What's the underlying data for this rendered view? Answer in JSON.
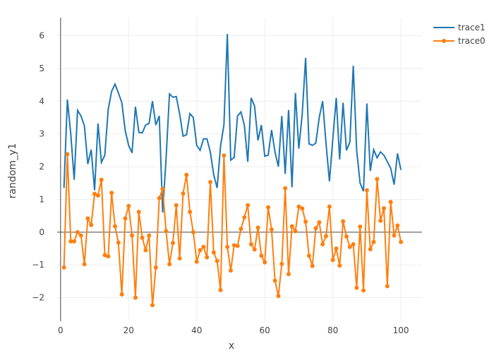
{
  "chart_data": {
    "type": "line",
    "title": "",
    "xlabel": "x",
    "ylabel": "random_y1",
    "xlim": [
      -1,
      106.2
    ],
    "ylim": [
      -2.72,
      6.55
    ],
    "grid": true,
    "legend_position": "top-right",
    "x_ticks": [
      0,
      20,
      40,
      60,
      80,
      100
    ],
    "y_ticks": [
      -2,
      -1,
      0,
      1,
      2,
      3,
      4,
      5,
      6
    ],
    "x_tick_labels": [
      "0",
      "20",
      "40",
      "60",
      "80",
      "100"
    ],
    "y_tick_labels": [
      "−2",
      "−1",
      "0",
      "1",
      "2",
      "3",
      "4",
      "5",
      "6"
    ],
    "series": [
      {
        "name": "trace1",
        "mode": "lines",
        "color": "#1f77b4",
        "values": [
          1.35,
          4.05,
          3.0,
          1.6,
          3.72,
          3.55,
          3.25,
          2.08,
          2.52,
          1.28,
          3.32,
          2.13,
          2.35,
          3.75,
          4.3,
          4.52,
          4.25,
          3.95,
          3.1,
          2.65,
          2.42,
          3.83,
          3.05,
          3.03,
          3.27,
          3.32,
          4.0,
          3.27,
          3.55,
          0.6,
          2.25,
          4.22,
          4.12,
          4.14,
          3.6,
          2.93,
          2.97,
          3.62,
          3.5,
          2.65,
          2.5,
          2.85,
          2.85,
          2.45,
          1.75,
          1.35,
          2.62,
          3.28,
          6.05,
          2.2,
          2.28,
          3.55,
          3.67,
          3.27,
          2.15,
          4.1,
          3.85,
          2.8,
          3.27,
          2.32,
          2.35,
          3.12,
          2.45,
          2.0,
          3.55,
          1.78,
          3.73,
          1.37,
          4.25,
          2.55,
          3.6,
          5.32,
          2.7,
          2.65,
          2.72,
          3.5,
          4.0,
          2.7,
          1.55,
          2.85,
          4.1,
          2.22,
          3.95,
          2.5,
          2.75,
          5.08,
          2.5,
          1.5,
          1.25,
          3.93,
          1.87,
          2.52,
          2.27,
          2.45,
          2.35,
          2.15,
          1.95,
          1.45,
          2.4,
          1.9
        ]
      },
      {
        "name": "trace0",
        "mode": "lines+markers",
        "color": "#ff7f0e",
        "values": [
          -1.08,
          2.38,
          -0.28,
          -0.28,
          0.0,
          -0.1,
          -0.98,
          0.42,
          0.22,
          1.17,
          1.12,
          1.6,
          -0.7,
          -0.74,
          1.2,
          0.18,
          -0.32,
          -1.9,
          0.42,
          0.8,
          -0.1,
          -2.0,
          0.62,
          -0.17,
          -0.55,
          -0.1,
          -2.23,
          -1.08,
          1.04,
          1.32,
          0.03,
          -0.98,
          -0.33,
          0.82,
          -0.8,
          1.18,
          1.75,
          0.62,
          0.0,
          -0.9,
          -0.55,
          -0.45,
          -0.77,
          1.53,
          -0.62,
          -0.88,
          -1.77,
          2.34,
          -0.45,
          -1.17,
          -0.4,
          -0.42,
          0.1,
          0.45,
          0.82,
          -0.37,
          -0.53,
          0.14,
          -0.72,
          -0.92,
          0.76,
          0.08,
          -1.48,
          -1.95,
          -0.97,
          1.34,
          -1.28,
          0.18,
          0.03,
          0.78,
          0.72,
          0.32,
          -0.72,
          -1.03,
          0.12,
          0.3,
          -0.37,
          -0.12,
          0.78,
          -0.85,
          -0.5,
          -1.02,
          0.33,
          -0.13,
          -0.45,
          -0.37,
          -1.7,
          0.17,
          -1.78,
          1.28,
          -0.52,
          -0.3,
          1.62,
          0.35,
          0.73,
          -1.65,
          0.92,
          -0.1,
          0.2,
          -0.3
        ]
      }
    ]
  }
}
